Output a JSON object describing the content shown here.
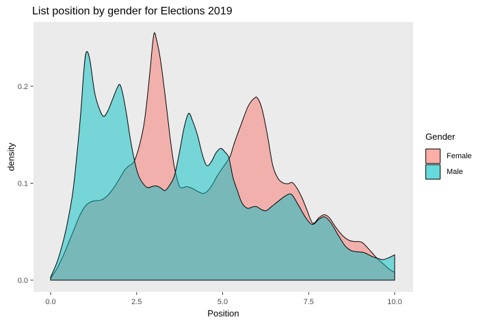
{
  "title": "List position by gender for Elections 2019",
  "axes": {
    "x_label": "Position",
    "y_label": "density",
    "x_ticks": [
      "0.0",
      "2.5",
      "5.0",
      "7.5",
      "10.0"
    ],
    "x_tick_values": [
      0,
      2.5,
      5,
      7.5,
      10
    ],
    "y_ticks": [
      "0.0",
      "0.1",
      "0.2"
    ],
    "y_tick_values": [
      0,
      0.1,
      0.2
    ]
  },
  "legend": {
    "title": "Gender",
    "items": [
      {
        "label": "Female",
        "color": "#F8766D"
      },
      {
        "label": "Male",
        "color": "#00BFC4"
      }
    ]
  },
  "colors": {
    "panel_bg": "#EBEBEB",
    "outline": "#000000",
    "tick_mark": "#333333",
    "tick_text": "#4D4D4D",
    "female_fill": "#F8766D",
    "male_fill": "#00BFC4",
    "fill_alpha": 0.5
  },
  "chart_data": {
    "type": "area",
    "title": "List position by gender for Elections 2019",
    "xlabel": "Position",
    "ylabel": "density",
    "xlim": [
      0,
      10
    ],
    "ylim": [
      0,
      0.266
    ],
    "grid": false,
    "legend_position": "right",
    "series": [
      {
        "name": "Female",
        "color": "#F8766D",
        "points": [
          [
            0,
            0.002
          ],
          [
            0.2,
            0.013
          ],
          [
            0.4,
            0.028
          ],
          [
            0.55,
            0.041
          ],
          [
            0.7,
            0.054
          ],
          [
            0.85,
            0.067
          ],
          [
            1.0,
            0.076
          ],
          [
            1.15,
            0.0805
          ],
          [
            1.3,
            0.082
          ],
          [
            1.45,
            0.0825
          ],
          [
            1.6,
            0.0855
          ],
          [
            1.8,
            0.0935
          ],
          [
            2.0,
            0.1045
          ],
          [
            2.15,
            0.1135
          ],
          [
            2.3,
            0.1185
          ],
          [
            2.42,
            0.122
          ],
          [
            2.55,
            0.135
          ],
          [
            2.7,
            0.158
          ],
          [
            2.8,
            0.185
          ],
          [
            2.9,
            0.22
          ],
          [
            3.0,
            0.2535
          ],
          [
            3.08,
            0.248
          ],
          [
            3.2,
            0.2255
          ],
          [
            3.33,
            0.19
          ],
          [
            3.47,
            0.148
          ],
          [
            3.57,
            0.122
          ],
          [
            3.65,
            0.108
          ],
          [
            3.75,
            0.0965
          ],
          [
            3.85,
            0.0955
          ],
          [
            3.95,
            0.0965
          ],
          [
            4.1,
            0.095
          ],
          [
            4.25,
            0.092
          ],
          [
            4.42,
            0.0895
          ],
          [
            4.55,
            0.0915
          ],
          [
            4.7,
            0.0985
          ],
          [
            4.85,
            0.108
          ],
          [
            5.0,
            0.116
          ],
          [
            5.1,
            0.121
          ],
          [
            5.22,
            0.128
          ],
          [
            5.35,
            0.1425
          ],
          [
            5.55,
            0.162
          ],
          [
            5.75,
            0.18
          ],
          [
            5.93,
            0.188
          ],
          [
            6.02,
            0.1875
          ],
          [
            6.15,
            0.176
          ],
          [
            6.3,
            0.15
          ],
          [
            6.45,
            0.1195
          ],
          [
            6.6,
            0.1055
          ],
          [
            6.75,
            0.1005
          ],
          [
            6.9,
            0.0995
          ],
          [
            7.02,
            0.1008
          ],
          [
            7.15,
            0.0955
          ],
          [
            7.3,
            0.0855
          ],
          [
            7.45,
            0.0725
          ],
          [
            7.62,
            0.0587
          ],
          [
            7.8,
            0.0645
          ],
          [
            7.95,
            0.0675
          ],
          [
            8.1,
            0.0645
          ],
          [
            8.3,
            0.054
          ],
          [
            8.5,
            0.0455
          ],
          [
            8.68,
            0.041
          ],
          [
            8.85,
            0.0398
          ],
          [
            9.05,
            0.039
          ],
          [
            9.3,
            0.03
          ],
          [
            9.5,
            0.0221
          ],
          [
            9.7,
            0.0158
          ],
          [
            9.85,
            0.0111
          ],
          [
            10,
            0.008
          ]
        ]
      },
      {
        "name": "Male",
        "color": "#00BFC4",
        "points": [
          [
            0,
            0.003
          ],
          [
            0.2,
            0.02
          ],
          [
            0.38,
            0.042
          ],
          [
            0.52,
            0.065
          ],
          [
            0.65,
            0.092
          ],
          [
            0.78,
            0.135
          ],
          [
            0.88,
            0.175
          ],
          [
            0.97,
            0.218
          ],
          [
            1.04,
            0.2355
          ],
          [
            1.14,
            0.2275
          ],
          [
            1.28,
            0.1935
          ],
          [
            1.42,
            0.1765
          ],
          [
            1.54,
            0.169
          ],
          [
            1.66,
            0.1745
          ],
          [
            1.8,
            0.1865
          ],
          [
            1.93,
            0.198
          ],
          [
            2.02,
            0.2015
          ],
          [
            2.12,
            0.1885
          ],
          [
            2.22,
            0.168
          ],
          [
            2.32,
            0.145
          ],
          [
            2.45,
            0.1215
          ],
          [
            2.55,
            0.1085
          ],
          [
            2.68,
            0.1
          ],
          [
            2.82,
            0.0955
          ],
          [
            2.97,
            0.0968
          ],
          [
            3.08,
            0.0972
          ],
          [
            3.2,
            0.0952
          ],
          [
            3.32,
            0.0924
          ],
          [
            3.45,
            0.0975
          ],
          [
            3.6,
            0.108
          ],
          [
            3.75,
            0.133
          ],
          [
            3.88,
            0.1575
          ],
          [
            4.01,
            0.172
          ],
          [
            4.12,
            0.165
          ],
          [
            4.27,
            0.1495
          ],
          [
            4.4,
            0.131
          ],
          [
            4.53,
            0.1185
          ],
          [
            4.66,
            0.1215
          ],
          [
            4.8,
            0.131
          ],
          [
            4.94,
            0.136
          ],
          [
            5.06,
            0.1325
          ],
          [
            5.18,
            0.1262
          ],
          [
            5.3,
            0.106
          ],
          [
            5.43,
            0.0922
          ],
          [
            5.56,
            0.0798
          ],
          [
            5.72,
            0.0742
          ],
          [
            5.88,
            0.0757
          ],
          [
            5.99,
            0.0758
          ],
          [
            6.12,
            0.073
          ],
          [
            6.26,
            0.0716
          ],
          [
            6.42,
            0.0758
          ],
          [
            6.62,
            0.0815
          ],
          [
            6.82,
            0.0868
          ],
          [
            7.0,
            0.0885
          ],
          [
            7.2,
            0.0775
          ],
          [
            7.42,
            0.0642
          ],
          [
            7.61,
            0.0575
          ],
          [
            7.8,
            0.0628
          ],
          [
            7.97,
            0.0652
          ],
          [
            8.15,
            0.059
          ],
          [
            8.35,
            0.047
          ],
          [
            8.55,
            0.0358
          ],
          [
            8.72,
            0.0308
          ],
          [
            8.9,
            0.0293
          ],
          [
            9.1,
            0.0286
          ],
          [
            9.32,
            0.0248
          ],
          [
            9.52,
            0.0224
          ],
          [
            9.66,
            0.0212
          ],
          [
            9.84,
            0.0234
          ],
          [
            10,
            0.0262
          ]
        ]
      }
    ]
  }
}
